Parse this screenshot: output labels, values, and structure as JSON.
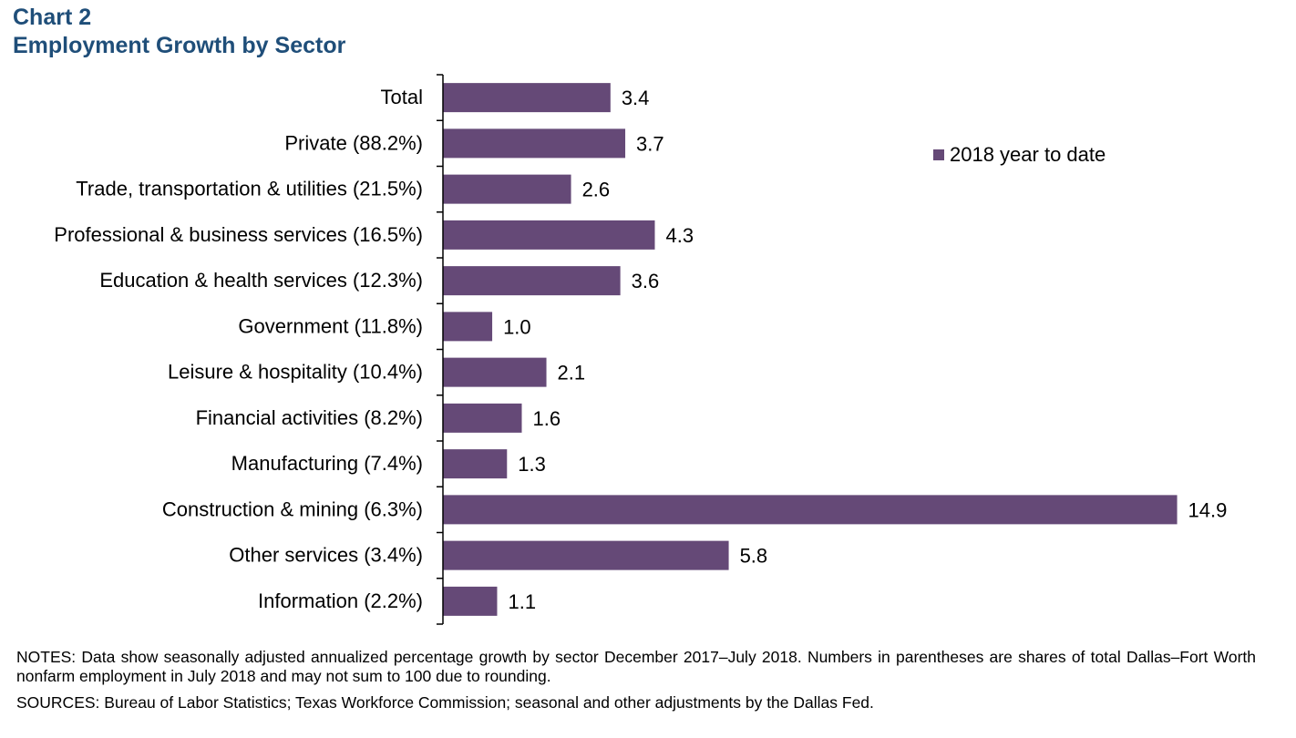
{
  "header": {
    "chart_number": "Chart 2",
    "title": "Employment Growth by Sector"
  },
  "legend": {
    "label": "2018 year to date"
  },
  "colors": {
    "bar": "#654977",
    "title": "#1f4e79"
  },
  "footer": {
    "notes": "NOTES: Data show seasonally adjusted annualized  percentage growth by sector December 2017–July 2018. Numbers in parentheses are shares of total Dallas–Fort Worth nonfarm employment in July 2018 and may not sum to 100 due to rounding.",
    "sources": "SOURCES: Bureau of Labor Statistics; Texas Workforce Commission;  seasonal and other adjustments by the Dallas Fed."
  },
  "chart_data": {
    "type": "bar",
    "orientation": "horizontal",
    "title": "Employment Growth by Sector",
    "categories": [
      "Total",
      "Private (88.2%)",
      "Trade, transportation & utilities (21.5%)",
      "Professional & business services (16.5%)",
      "Education & health services (12.3%)",
      "Government (11.8%)",
      "Leisure & hospitality (10.4%)",
      "Financial activities (8.2%)",
      "Manufacturing (7.4%)",
      "Construction & mining (6.3%)",
      "Other services (3.4%)",
      "Information (2.2%)"
    ],
    "series": [
      {
        "name": "2018 year to date",
        "values": [
          3.4,
          3.7,
          2.6,
          4.3,
          3.6,
          1.0,
          2.1,
          1.6,
          1.3,
          14.9,
          5.8,
          1.1
        ],
        "labels": [
          "3.4",
          "3.7",
          "2.6",
          "4.3",
          "3.6",
          "1.0",
          "2.1",
          "1.6",
          "1.3",
          "14.9",
          "5.8",
          "1.1"
        ]
      }
    ],
    "xlim": [
      0,
      15.5
    ],
    "legend_position": "top-right",
    "grid": false
  }
}
